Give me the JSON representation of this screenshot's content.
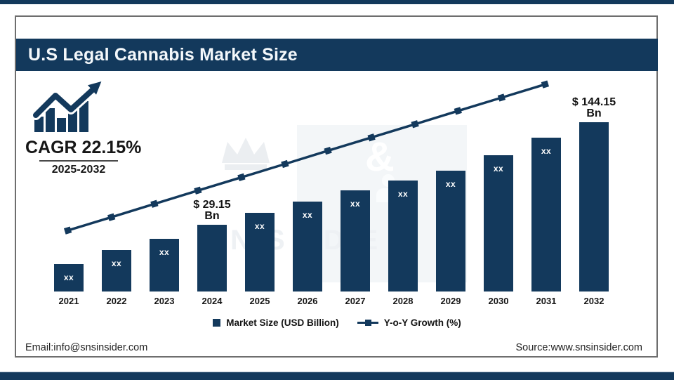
{
  "page": {
    "title_bar": "U.S Legal Cannabis Market Size",
    "cagr": {
      "label": "CAGR 22.15%",
      "period": "2025-2032"
    },
    "footer": {
      "email": "Email:info@snsinsider.com",
      "source": "Source:www.snsinsider.com"
    },
    "watermark": {
      "amp": "&",
      "ghost_text": "INSIDER"
    }
  },
  "legend": [
    {
      "swatch": "square",
      "label": "Market Size (USD Billion)"
    },
    {
      "swatch": "line-marker",
      "label": "Y-o-Y Growth (%)"
    }
  ],
  "colors": {
    "navy": "#13395c",
    "bar": "#13395c",
    "line": "#13395c",
    "frame_border": "#6e6e6e",
    "watermark_light": "#f3f6f8"
  },
  "chart_data": {
    "type": "bar",
    "combo": "bar + line",
    "title": "U.S Legal Cannabis Market Size",
    "xlabel": "",
    "ylabel": "Market Size (USD Billion)",
    "grid": false,
    "legend_position": "bottom-center",
    "categories": [
      "2021",
      "2022",
      "2023",
      "2024",
      "2025",
      "2026",
      "2027",
      "2028",
      "2029",
      "2030",
      "2031",
      "2032"
    ],
    "bar_series": {
      "name": "Market Size (USD Billion)",
      "unit": "USD Billion",
      "labeled_values": {
        "2024": 29.15,
        "2032": 144.15
      },
      "bars": [
        {
          "year": "2021",
          "label": "xx",
          "label_pos": "inside",
          "height_pct": 16.2
        },
        {
          "year": "2022",
          "label": "xx",
          "label_pos": "inside",
          "height_pct": 24.5
        },
        {
          "year": "2023",
          "label": "xx",
          "label_pos": "inside",
          "height_pct": 31.1
        },
        {
          "year": "2024",
          "label": "$ 29.15",
          "label2": "Bn",
          "label_pos": "above",
          "height_pct": 39.4
        },
        {
          "year": "2025",
          "label": "xx",
          "label_pos": "inside",
          "height_pct": 46.5
        },
        {
          "year": "2026",
          "label": "xx",
          "label_pos": "inside",
          "height_pct": 53.1
        },
        {
          "year": "2027",
          "label": "xx",
          "label_pos": "inside",
          "height_pct": 59.8
        },
        {
          "year": "2028",
          "label": "xx",
          "label_pos": "inside",
          "height_pct": 65.6
        },
        {
          "year": "2029",
          "label": "xx",
          "label_pos": "inside",
          "height_pct": 71.4
        },
        {
          "year": "2030",
          "label": "xx",
          "label_pos": "inside",
          "height_pct": 80.5
        },
        {
          "year": "2031",
          "label": "xx",
          "label_pos": "inside",
          "height_pct": 90.9
        },
        {
          "year": "2032",
          "label": "$ 144.15",
          "label2": "Bn",
          "label_pos": "above",
          "height_pct": 100
        }
      ]
    },
    "line_series": {
      "name": "Y-o-Y Growth (%)",
      "shape": "linear ascending, 12 square markers",
      "x_pct": [
        4.0,
        11.6,
        19.1,
        26.7,
        34.3,
        41.9,
        49.4,
        57.0,
        64.6,
        72.1,
        79.7,
        87.3
      ],
      "y_pct_from_bottom": [
        28.5,
        34.7,
        40.9,
        47.1,
        53.3,
        59.5,
        65.7,
        71.9,
        78.1,
        84.3,
        90.5,
        96.7
      ]
    },
    "annotations": {
      "cagr": "CAGR 22.15%",
      "cagr_period": "2025-2032",
      "value_2024": "$ 29.15 Bn",
      "value_2032": "$ 144.15 Bn"
    }
  }
}
